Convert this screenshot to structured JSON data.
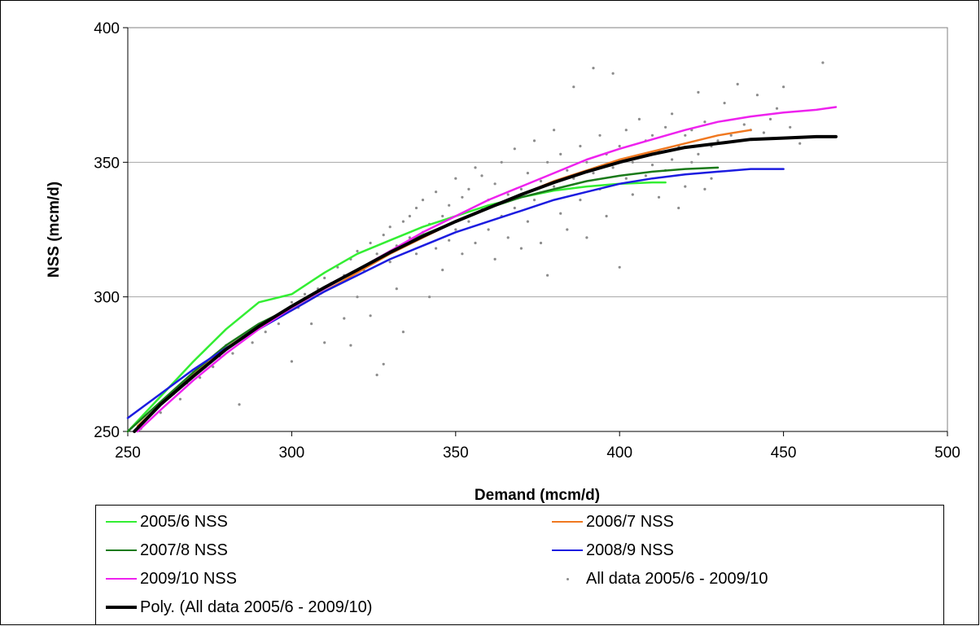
{
  "chart_data": {
    "type": "scatter",
    "title": "",
    "xlabel": "Demand (mcm/d)",
    "ylabel": "NSS (mcm/d)",
    "xlim": [
      250,
      500
    ],
    "ylim": [
      250,
      400
    ],
    "xticks": [
      "250",
      "300",
      "350",
      "400",
      "450",
      "500"
    ],
    "yticks": [
      "250",
      "300",
      "350",
      "400"
    ],
    "grid": "horizontal",
    "legend_position": "bottom",
    "series": [
      {
        "name": "2005/6 NSS",
        "kind": "line",
        "color": "#33ee33",
        "width": 2.5,
        "points": [
          [
            250,
            250
          ],
          [
            260,
            263
          ],
          [
            270,
            276
          ],
          [
            280,
            288
          ],
          [
            290,
            298
          ],
          [
            300,
            301
          ],
          [
            310,
            309
          ],
          [
            320,
            316
          ],
          [
            330,
            321
          ],
          [
            340,
            326
          ],
          [
            350,
            330
          ],
          [
            360,
            334
          ],
          [
            370,
            337
          ],
          [
            380,
            339.5
          ],
          [
            390,
            341
          ],
          [
            400,
            342
          ],
          [
            410,
            342.5
          ],
          [
            414,
            342.5
          ]
        ]
      },
      {
        "name": "2006/7 NSS",
        "kind": "line",
        "color": "#f07820",
        "width": 2.5,
        "points": [
          [
            253,
            252
          ],
          [
            260,
            260
          ],
          [
            270,
            271
          ],
          [
            280,
            281
          ],
          [
            290,
            289
          ],
          [
            300,
            295
          ],
          [
            310,
            302
          ],
          [
            320,
            309
          ],
          [
            330,
            316
          ],
          [
            340,
            322
          ],
          [
            350,
            328
          ],
          [
            360,
            333
          ],
          [
            370,
            338
          ],
          [
            380,
            343
          ],
          [
            390,
            347
          ],
          [
            400,
            351
          ],
          [
            410,
            354
          ],
          [
            420,
            357
          ],
          [
            430,
            360
          ],
          [
            440,
            362
          ]
        ]
      },
      {
        "name": "2007/8 NSS",
        "kind": "line",
        "color": "#1a7a1a",
        "width": 2.5,
        "points": [
          [
            250,
            250
          ],
          [
            260,
            261
          ],
          [
            270,
            272
          ],
          [
            280,
            282
          ],
          [
            290,
            290
          ],
          [
            300,
            296
          ],
          [
            310,
            303
          ],
          [
            320,
            310
          ],
          [
            330,
            317
          ],
          [
            340,
            323
          ],
          [
            350,
            328
          ],
          [
            360,
            333
          ],
          [
            370,
            337
          ],
          [
            380,
            340
          ],
          [
            390,
            343
          ],
          [
            400,
            345
          ],
          [
            410,
            346.5
          ],
          [
            420,
            347.5
          ],
          [
            430,
            348
          ]
        ]
      },
      {
        "name": "2008/9 NSS",
        "kind": "line",
        "color": "#1c1ce0",
        "width": 2.5,
        "points": [
          [
            250,
            255
          ],
          [
            260,
            264
          ],
          [
            270,
            273
          ],
          [
            280,
            281
          ],
          [
            290,
            288
          ],
          [
            300,
            295
          ],
          [
            310,
            302
          ],
          [
            320,
            308
          ],
          [
            330,
            314
          ],
          [
            340,
            319
          ],
          [
            350,
            324
          ],
          [
            360,
            328
          ],
          [
            370,
            332
          ],
          [
            380,
            336
          ],
          [
            390,
            339
          ],
          [
            400,
            342
          ],
          [
            410,
            344
          ],
          [
            420,
            345.5
          ],
          [
            430,
            346.5
          ],
          [
            440,
            347.5
          ],
          [
            450,
            347.5
          ]
        ]
      },
      {
        "name": "2009/10 NSS",
        "kind": "line",
        "color": "#ee22ee",
        "width": 2.5,
        "points": [
          [
            253,
            250
          ],
          [
            260,
            258
          ],
          [
            270,
            269
          ],
          [
            280,
            279
          ],
          [
            290,
            288
          ],
          [
            300,
            296
          ],
          [
            310,
            303
          ],
          [
            320,
            310
          ],
          [
            330,
            317
          ],
          [
            340,
            324
          ],
          [
            350,
            330
          ],
          [
            360,
            336
          ],
          [
            370,
            341
          ],
          [
            380,
            346
          ],
          [
            390,
            351
          ],
          [
            400,
            355
          ],
          [
            410,
            358.5
          ],
          [
            420,
            362
          ],
          [
            430,
            365
          ],
          [
            440,
            367
          ],
          [
            450,
            368.5
          ],
          [
            460,
            369.5
          ],
          [
            466,
            370.5
          ]
        ]
      },
      {
        "name": "All data 2005/6 - 2009/10",
        "kind": "scatter",
        "color": "#8c8c8c",
        "points": [
          [
            254,
            251
          ],
          [
            256,
            255
          ],
          [
            258,
            258
          ],
          [
            260,
            257
          ],
          [
            262,
            262
          ],
          [
            264,
            264
          ],
          [
            266,
            262
          ],
          [
            268,
            268
          ],
          [
            270,
            272
          ],
          [
            272,
            270
          ],
          [
            274,
            276
          ],
          [
            276,
            274
          ],
          [
            278,
            278
          ],
          [
            280,
            282
          ],
          [
            282,
            279
          ],
          [
            284,
            260
          ],
          [
            285,
            285
          ],
          [
            288,
            283
          ],
          [
            290,
            289
          ],
          [
            292,
            287
          ],
          [
            294,
            292
          ],
          [
            296,
            290
          ],
          [
            298,
            294
          ],
          [
            300,
            276
          ],
          [
            300,
            298
          ],
          [
            302,
            296
          ],
          [
            304,
            301
          ],
          [
            306,
            290
          ],
          [
            308,
            303
          ],
          [
            310,
            307
          ],
          [
            310,
            283
          ],
          [
            312,
            305
          ],
          [
            314,
            311
          ],
          [
            316,
            292
          ],
          [
            316,
            308
          ],
          [
            318,
            314
          ],
          [
            318,
            282
          ],
          [
            320,
            300
          ],
          [
            320,
            317
          ],
          [
            322,
            310
          ],
          [
            324,
            320
          ],
          [
            324,
            293
          ],
          [
            326,
            316
          ],
          [
            326,
            271
          ],
          [
            328,
            323
          ],
          [
            328,
            275
          ],
          [
            330,
            313
          ],
          [
            330,
            326
          ],
          [
            332,
            319
          ],
          [
            332,
            303
          ],
          [
            334,
            328
          ],
          [
            334,
            287
          ],
          [
            336,
            322
          ],
          [
            336,
            330
          ],
          [
            338,
            316
          ],
          [
            338,
            333
          ],
          [
            340,
            324
          ],
          [
            340,
            336
          ],
          [
            342,
            327
          ],
          [
            342,
            300
          ],
          [
            344,
            318
          ],
          [
            344,
            339
          ],
          [
            346,
            330
          ],
          [
            346,
            310
          ],
          [
            348,
            334
          ],
          [
            348,
            321
          ],
          [
            350,
            344
          ],
          [
            350,
            325
          ],
          [
            352,
            337
          ],
          [
            352,
            316
          ],
          [
            354,
            340
          ],
          [
            354,
            328
          ],
          [
            356,
            348
          ],
          [
            356,
            320
          ],
          [
            358,
            333
          ],
          [
            358,
            345
          ],
          [
            360,
            336
          ],
          [
            360,
            325
          ],
          [
            362,
            342
          ],
          [
            362,
            314
          ],
          [
            364,
            350
          ],
          [
            364,
            330
          ],
          [
            366,
            338
          ],
          [
            366,
            322
          ],
          [
            368,
            355
          ],
          [
            368,
            333
          ],
          [
            370,
            340
          ],
          [
            370,
            318
          ],
          [
            372,
            346
          ],
          [
            372,
            328
          ],
          [
            374,
            336
          ],
          [
            374,
            358
          ],
          [
            376,
            320
          ],
          [
            376,
            343
          ],
          [
            378,
            350
          ],
          [
            378,
            308
          ],
          [
            380,
            341
          ],
          [
            380,
            362
          ],
          [
            382,
            331
          ],
          [
            382,
            353
          ],
          [
            384,
            347
          ],
          [
            384,
            325
          ],
          [
            386,
            378
          ],
          [
            386,
            344
          ],
          [
            388,
            356
          ],
          [
            388,
            336
          ],
          [
            390,
            350
          ],
          [
            390,
            322
          ],
          [
            392,
            385
          ],
          [
            392,
            346
          ],
          [
            394,
            360
          ],
          [
            394,
            340
          ],
          [
            396,
            353
          ],
          [
            396,
            330
          ],
          [
            398,
            383
          ],
          [
            398,
            348
          ],
          [
            400,
            311
          ],
          [
            400,
            356
          ],
          [
            402,
            344
          ],
          [
            402,
            362
          ],
          [
            404,
            350
          ],
          [
            404,
            338
          ],
          [
            406,
            366
          ],
          [
            406,
            352
          ],
          [
            408,
            358
          ],
          [
            408,
            345
          ],
          [
            410,
            360
          ],
          [
            410,
            349
          ],
          [
            412,
            354
          ],
          [
            412,
            337
          ],
          [
            414,
            363
          ],
          [
            414,
            347
          ],
          [
            416,
            368
          ],
          [
            416,
            351
          ],
          [
            418,
            333
          ],
          [
            418,
            356
          ],
          [
            420,
            360
          ],
          [
            420,
            341
          ],
          [
            422,
            362
          ],
          [
            422,
            350
          ],
          [
            424,
            376
          ],
          [
            424,
            353
          ],
          [
            426,
            340
          ],
          [
            426,
            365
          ],
          [
            428,
            356
          ],
          [
            428,
            344
          ],
          [
            430,
            358
          ],
          [
            432,
            372
          ],
          [
            434,
            360
          ],
          [
            436,
            379
          ],
          [
            438,
            364
          ],
          [
            440,
            362
          ],
          [
            442,
            375
          ],
          [
            444,
            361
          ],
          [
            446,
            366
          ],
          [
            448,
            370
          ],
          [
            450,
            378
          ],
          [
            452,
            363
          ],
          [
            455,
            357
          ],
          [
            462,
            387
          ]
        ]
      },
      {
        "name": "Poly. (All data 2005/6 - 2009/10)",
        "kind": "line",
        "color": "#000000",
        "width": 4,
        "points": [
          [
            252,
            250
          ],
          [
            260,
            260
          ],
          [
            270,
            270.5
          ],
          [
            280,
            280.5
          ],
          [
            290,
            289
          ],
          [
            300,
            296.5
          ],
          [
            310,
            303.5
          ],
          [
            320,
            310
          ],
          [
            330,
            316.5
          ],
          [
            340,
            322.5
          ],
          [
            350,
            328
          ],
          [
            360,
            333
          ],
          [
            370,
            338
          ],
          [
            380,
            342.5
          ],
          [
            390,
            346.5
          ],
          [
            400,
            350
          ],
          [
            410,
            353
          ],
          [
            420,
            355.5
          ],
          [
            430,
            357
          ],
          [
            440,
            358.5
          ],
          [
            450,
            359
          ],
          [
            460,
            359.5
          ],
          [
            466,
            359.5
          ]
        ]
      }
    ]
  }
}
